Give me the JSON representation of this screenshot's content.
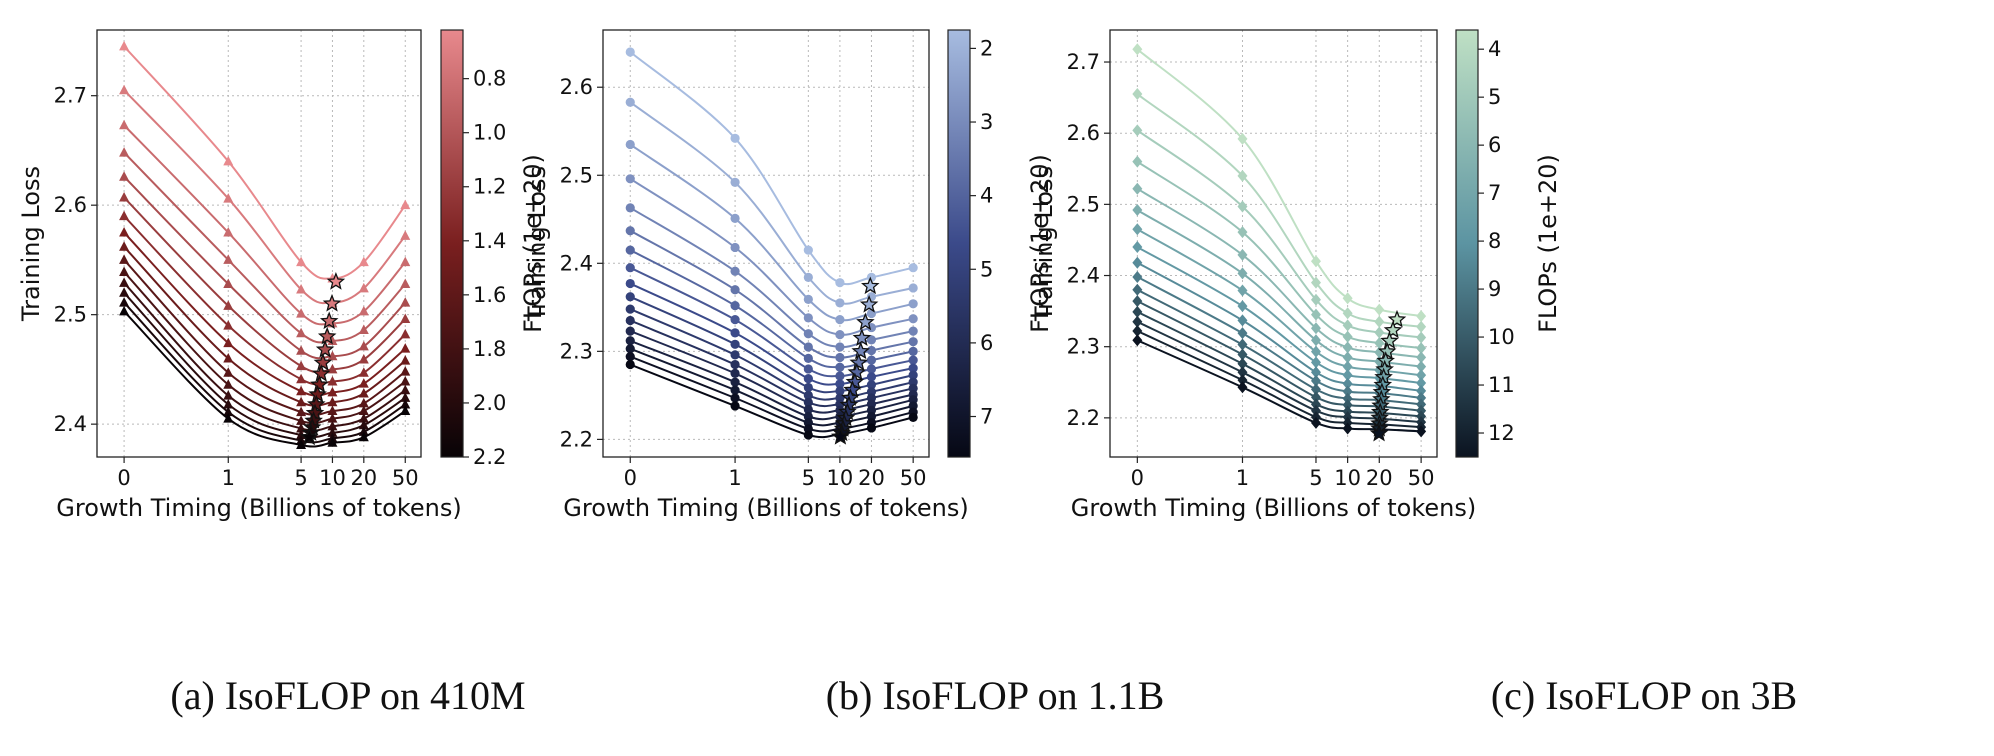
{
  "chart_data": [
    {
      "type": "line",
      "caption": "(a) IsoFLOP on 410M",
      "xlabel": "Growth Timing (Billions of tokens)",
      "ylabel": "Training Loss",
      "x_ticks": [
        "0",
        "1",
        "5",
        "10",
        "20",
        "50"
      ],
      "x": [
        0,
        1,
        5,
        10,
        20,
        50
      ],
      "y_ticks": [
        2.4,
        2.5,
        2.6,
        2.7
      ],
      "ylim": [
        2.37,
        2.76
      ],
      "marker": "triangle",
      "colorbar": {
        "label": "FLOPs (1e+20)",
        "ticks": [
          "0.8",
          "1.0",
          "1.2",
          "1.4",
          "1.6",
          "1.8",
          "2.0",
          "2.2"
        ],
        "range": [
          0.62,
          2.2
        ],
        "color_low": "#e8898d",
        "color_mid": "#7a1f1f",
        "color_high": "#080306"
      },
      "series": [
        {
          "values": [
            2.745,
            2.64,
            2.548,
            2.533,
            2.548,
            2.6
          ]
        },
        {
          "values": [
            2.705,
            2.606,
            2.523,
            2.511,
            2.524,
            2.572
          ]
        },
        {
          "values": [
            2.673,
            2.575,
            2.501,
            2.492,
            2.503,
            2.548
          ]
        },
        {
          "values": [
            2.648,
            2.55,
            2.483,
            2.476,
            2.486,
            2.528
          ]
        },
        {
          "values": [
            2.626,
            2.528,
            2.467,
            2.462,
            2.471,
            2.511
          ]
        },
        {
          "values": [
            2.607,
            2.508,
            2.453,
            2.45,
            2.459,
            2.496
          ]
        },
        {
          "values": [
            2.59,
            2.49,
            2.441,
            2.439,
            2.447,
            2.482
          ]
        },
        {
          "values": [
            2.575,
            2.474,
            2.43,
            2.429,
            2.437,
            2.469
          ]
        },
        {
          "values": [
            2.562,
            2.46,
            2.42,
            2.42,
            2.428,
            2.458
          ]
        },
        {
          "values": [
            2.55,
            2.447,
            2.411,
            2.412,
            2.419,
            2.448
          ]
        },
        {
          "values": [
            2.539,
            2.436,
            2.403,
            2.405,
            2.412,
            2.439
          ]
        },
        {
          "values": [
            2.529,
            2.426,
            2.396,
            2.398,
            2.405,
            2.431
          ]
        },
        {
          "values": [
            2.52,
            2.418,
            2.39,
            2.392,
            2.399,
            2.424
          ]
        },
        {
          "values": [
            2.511,
            2.411,
            2.385,
            2.387,
            2.393,
            2.418
          ]
        },
        {
          "values": [
            2.503,
            2.405,
            2.381,
            2.383,
            2.388,
            2.412
          ]
        }
      ],
      "optima": [
        {
          "x": 10.8,
          "y": 2.53
        },
        {
          "x": 9.9,
          "y": 2.51
        },
        {
          "x": 9.3,
          "y": 2.494
        },
        {
          "x": 8.9,
          "y": 2.48
        },
        {
          "x": 8.5,
          "y": 2.468
        },
        {
          "x": 8.1,
          "y": 2.456
        },
        {
          "x": 7.8,
          "y": 2.446
        },
        {
          "x": 7.5,
          "y": 2.436
        },
        {
          "x": 7.2,
          "y": 2.427
        },
        {
          "x": 7.0,
          "y": 2.418
        },
        {
          "x": 6.8,
          "y": 2.41
        },
        {
          "x": 6.6,
          "y": 2.403
        },
        {
          "x": 6.4,
          "y": 2.397
        },
        {
          "x": 6.2,
          "y": 2.392
        },
        {
          "x": 6.0,
          "y": 2.388
        }
      ]
    },
    {
      "type": "line",
      "caption": "(b) IsoFLOP on 1.1B",
      "xlabel": "Growth Timing (Billions of tokens)",
      "ylabel": "Training Loss",
      "x_ticks": [
        "0",
        "1",
        "5",
        "10",
        "20",
        "50"
      ],
      "x": [
        0,
        1,
        5,
        10,
        20,
        50
      ],
      "y_ticks": [
        2.2,
        2.3,
        2.4,
        2.5,
        2.6
      ],
      "ylim": [
        2.18,
        2.665
      ],
      "marker": "circle",
      "colorbar": {
        "label": "FLOPs (1e+20)",
        "ticks": [
          "2",
          "3",
          "4",
          "5",
          "6",
          "7"
        ],
        "range": [
          1.75,
          7.55
        ],
        "color_low": "#a7bce0",
        "color_mid": "#3b4a8a",
        "color_high": "#060814"
      },
      "series": [
        {
          "values": [
            2.64,
            2.542,
            2.415,
            2.378,
            2.384,
            2.395
          ]
        },
        {
          "values": [
            2.583,
            2.492,
            2.384,
            2.355,
            2.362,
            2.372
          ]
        },
        {
          "values": [
            2.535,
            2.451,
            2.359,
            2.336,
            2.343,
            2.354
          ]
        },
        {
          "values": [
            2.496,
            2.418,
            2.338,
            2.319,
            2.327,
            2.337
          ]
        },
        {
          "values": [
            2.463,
            2.391,
            2.32,
            2.305,
            2.313,
            2.323
          ]
        },
        {
          "values": [
            2.437,
            2.37,
            2.305,
            2.293,
            2.301,
            2.311
          ]
        },
        {
          "values": [
            2.415,
            2.352,
            2.292,
            2.282,
            2.29,
            2.3
          ]
        },
        {
          "values": [
            2.395,
            2.336,
            2.28,
            2.272,
            2.28,
            2.29
          ]
        },
        {
          "values": [
            2.377,
            2.321,
            2.269,
            2.263,
            2.271,
            2.281
          ]
        },
        {
          "values": [
            2.362,
            2.308,
            2.259,
            2.255,
            2.262,
            2.273
          ]
        },
        {
          "values": [
            2.348,
            2.296,
            2.25,
            2.247,
            2.254,
            2.265
          ]
        },
        {
          "values": [
            2.335,
            2.285,
            2.242,
            2.24,
            2.247,
            2.258
          ]
        },
        {
          "values": [
            2.323,
            2.275,
            2.234,
            2.233,
            2.24,
            2.251
          ]
        },
        {
          "values": [
            2.312,
            2.265,
            2.226,
            2.226,
            2.233,
            2.245
          ]
        },
        {
          "values": [
            2.303,
            2.256,
            2.219,
            2.219,
            2.226,
            2.238
          ]
        },
        {
          "values": [
            2.294,
            2.247,
            2.212,
            2.212,
            2.219,
            2.231
          ]
        },
        {
          "values": [
            2.285,
            2.238,
            2.205,
            2.206,
            2.213,
            2.225
          ]
        }
      ],
      "optima": [
        {
          "x": 19.5,
          "y": 2.374
        },
        {
          "x": 19.0,
          "y": 2.353
        },
        {
          "x": 17.5,
          "y": 2.333
        },
        {
          "x": 16.2,
          "y": 2.315
        },
        {
          "x": 15.8,
          "y": 2.3
        },
        {
          "x": 15.1,
          "y": 2.287
        },
        {
          "x": 14.5,
          "y": 2.276
        },
        {
          "x": 13.9,
          "y": 2.265
        },
        {
          "x": 13.2,
          "y": 2.256
        },
        {
          "x": 12.6,
          "y": 2.247
        },
        {
          "x": 12.2,
          "y": 2.239
        },
        {
          "x": 11.8,
          "y": 2.231
        },
        {
          "x": 11.4,
          "y": 2.224
        },
        {
          "x": 11.0,
          "y": 2.218
        },
        {
          "x": 10.7,
          "y": 2.212
        },
        {
          "x": 10.4,
          "y": 2.207
        },
        {
          "x": 10.1,
          "y": 2.203
        }
      ]
    },
    {
      "type": "line",
      "caption": "(c) IsoFLOP on 3B",
      "xlabel": "Growth Timing (Billions of tokens)",
      "ylabel": "Training Loss",
      "x_ticks": [
        "0",
        "1",
        "5",
        "10",
        "20",
        "50"
      ],
      "x": [
        0,
        1,
        5,
        10,
        20,
        50
      ],
      "y_ticks": [
        2.2,
        2.3,
        2.4,
        2.5,
        2.6,
        2.7
      ],
      "ylim": [
        2.145,
        2.745
      ],
      "marker": "diamond",
      "colorbar": {
        "label": "FLOPs (1e+20)",
        "ticks": [
          "4",
          "5",
          "6",
          "7",
          "8",
          "9",
          "10",
          "11",
          "12"
        ],
        "range": [
          3.6,
          12.5
        ],
        "color_low": "#bfe0c4",
        "color_mid": "#5c94a2",
        "color_high": "#0b1320"
      },
      "series": [
        {
          "values": [
            2.718,
            2.592,
            2.42,
            2.368,
            2.352,
            2.343
          ]
        },
        {
          "values": [
            2.655,
            2.54,
            2.39,
            2.347,
            2.335,
            2.328
          ]
        },
        {
          "values": [
            2.604,
            2.497,
            2.366,
            2.33,
            2.32,
            2.313
          ]
        },
        {
          "values": [
            2.56,
            2.461,
            2.345,
            2.314,
            2.305,
            2.298
          ]
        },
        {
          "values": [
            2.522,
            2.429,
            2.326,
            2.299,
            2.292,
            2.285
          ]
        },
        {
          "values": [
            2.492,
            2.403,
            2.309,
            2.285,
            2.279,
            2.272
          ]
        },
        {
          "values": [
            2.465,
            2.379,
            2.293,
            2.272,
            2.267,
            2.26
          ]
        },
        {
          "values": [
            2.44,
            2.357,
            2.278,
            2.26,
            2.256,
            2.249
          ]
        },
        {
          "values": [
            2.418,
            2.337,
            2.264,
            2.248,
            2.245,
            2.238
          ]
        },
        {
          "values": [
            2.398,
            2.319,
            2.252,
            2.237,
            2.235,
            2.228
          ]
        },
        {
          "values": [
            2.38,
            2.303,
            2.24,
            2.227,
            2.225,
            2.219
          ]
        },
        {
          "values": [
            2.364,
            2.289,
            2.229,
            2.218,
            2.216,
            2.21
          ]
        },
        {
          "values": [
            2.349,
            2.276,
            2.219,
            2.209,
            2.207,
            2.202
          ]
        },
        {
          "values": [
            2.335,
            2.264,
            2.21,
            2.201,
            2.199,
            2.194
          ]
        },
        {
          "values": [
            2.322,
            2.253,
            2.201,
            2.193,
            2.191,
            2.187
          ]
        },
        {
          "values": [
            2.309,
            2.243,
            2.193,
            2.185,
            2.184,
            2.181
          ]
        }
      ],
      "optima": [
        {
          "x": 29.5,
          "y": 2.338
        },
        {
          "x": 27.0,
          "y": 2.323
        },
        {
          "x": 25.0,
          "y": 2.308
        },
        {
          "x": 23.8,
          "y": 2.293
        },
        {
          "x": 23.0,
          "y": 2.28
        },
        {
          "x": 22.5,
          "y": 2.268
        },
        {
          "x": 22.0,
          "y": 2.257
        },
        {
          "x": 21.6,
          "y": 2.246
        },
        {
          "x": 21.2,
          "y": 2.236
        },
        {
          "x": 20.9,
          "y": 2.226
        },
        {
          "x": 20.6,
          "y": 2.217
        },
        {
          "x": 20.4,
          "y": 2.208
        },
        {
          "x": 20.2,
          "y": 2.2
        },
        {
          "x": 20.1,
          "y": 2.192
        },
        {
          "x": 20.0,
          "y": 2.185
        },
        {
          "x": 19.9,
          "y": 2.178
        }
      ]
    }
  ]
}
